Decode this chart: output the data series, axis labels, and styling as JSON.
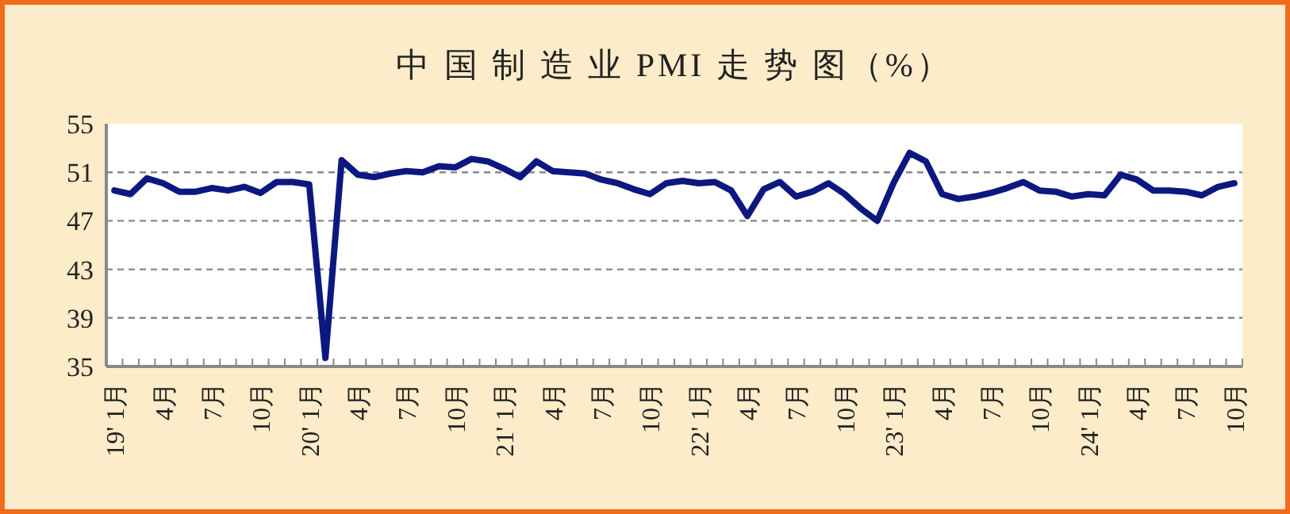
{
  "chart_data": {
    "type": "line",
    "title": "中 国 制 造 业 PMI 走 势 图（%）",
    "categories": [
      "19' 1月",
      null,
      null,
      "4月",
      null,
      null,
      "7月",
      null,
      null,
      "10月",
      null,
      null,
      "20' 1月",
      null,
      null,
      "4月",
      null,
      null,
      "7月",
      null,
      null,
      "10月",
      null,
      null,
      "21' 1月",
      null,
      null,
      "4月",
      null,
      null,
      "7月",
      null,
      null,
      "10月",
      null,
      null,
      "22' 1月",
      null,
      null,
      "4月",
      null,
      null,
      "7月",
      null,
      null,
      "10月",
      null,
      null,
      "23' 1月",
      null,
      null,
      "4月",
      null,
      null,
      "7月",
      null,
      null,
      "10月",
      null,
      null,
      "24' 1月",
      null,
      null,
      "4月",
      null,
      null,
      "7月",
      null,
      null,
      "10月"
    ],
    "values": [
      49.5,
      49.2,
      50.5,
      50.1,
      49.4,
      49.4,
      49.7,
      49.5,
      49.8,
      49.3,
      50.2,
      50.2,
      50.0,
      35.7,
      52.0,
      50.8,
      50.6,
      50.9,
      51.1,
      51.0,
      51.5,
      51.4,
      52.1,
      51.9,
      51.3,
      50.6,
      51.9,
      51.1,
      51.0,
      50.9,
      50.4,
      50.1,
      49.6,
      49.2,
      50.1,
      50.3,
      50.1,
      50.2,
      49.5,
      47.4,
      49.6,
      50.2,
      49.0,
      49.4,
      50.1,
      49.2,
      48.0,
      47.0,
      50.1,
      52.6,
      51.9,
      49.2,
      48.8,
      49.0,
      49.3,
      49.7,
      50.2,
      49.5,
      49.4,
      49.0,
      49.2,
      49.1,
      50.8,
      50.4,
      49.5,
      49.5,
      49.4,
      49.1,
      49.8,
      50.1
    ],
    "color": "#0c1880",
    "ylim": [
      35,
      55
    ],
    "yticks": [
      35,
      39,
      43,
      47,
      51,
      55
    ],
    "grid": "y",
    "line_style": "solid"
  }
}
